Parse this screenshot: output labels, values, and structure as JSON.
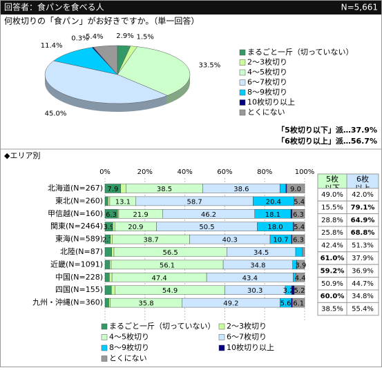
{
  "header": {
    "title": "回答者：食パンを食べる人",
    "n": "N=5,661"
  },
  "question": "何枚切りの「食パン」がお好きですか。（単一回答）",
  "summary": [
    "「5枚切り以下」派…37.9%",
    "「6枚切り以上」派…56.7%"
  ],
  "area_label": "◆エリア別",
  "table": {
    "header": [
      [
        "5枚",
        "以下"
      ],
      [
        "6枚",
        "以上"
      ]
    ],
    "header_colors": [
      "#ccffcc",
      "#cce6ff"
    ],
    "rows": [
      [
        "49.0%",
        "42.0%"
      ],
      [
        "15.5%",
        "79.1%"
      ],
      [
        "28.8%",
        "64.9%"
      ],
      [
        "25.8%",
        "68.8%"
      ],
      [
        "42.4%",
        "51.3%"
      ],
      [
        "61.0%",
        "37.9%"
      ],
      [
        "59.2%",
        "36.9%"
      ],
      [
        "50.9%",
        "44.7%"
      ],
      [
        "60.0%",
        "34.8%"
      ],
      [
        "38.5%",
        "55.4%"
      ]
    ],
    "bold": [
      [
        false,
        false
      ],
      [
        false,
        true
      ],
      [
        false,
        true
      ],
      [
        false,
        true
      ],
      [
        false,
        false
      ],
      [
        true,
        false
      ],
      [
        true,
        false
      ],
      [
        false,
        false
      ],
      [
        true,
        false
      ],
      [
        false,
        false
      ]
    ]
  },
  "chart_data": [
    {
      "type": "pie",
      "categories": [
        "まるごと一斤（切っていない）",
        "2～3枚切り",
        "4～5枚切り",
        "6～7枚切り",
        "8～9枚切り",
        "10枚切り以上",
        "とくにない"
      ],
      "values": [
        2.9,
        1.5,
        33.5,
        45.0,
        11.4,
        0.3,
        5.4
      ],
      "value_labels": [
        "2.9%",
        "1.5%",
        "33.5%",
        "45.0%",
        "11.4%",
        "0.3%",
        "5.4%"
      ],
      "colors": [
        "#339966",
        "#ccff99",
        "#ccffcc",
        "#cce6ff",
        "#00ccff",
        "#000080",
        "#999999"
      ],
      "legend": "right"
    },
    {
      "type": "stacked-bar",
      "orientation": "horizontal",
      "categories": [
        "北海道(N=267)",
        "東北(N=260)",
        "甲信越(N=160)",
        "関東(N=2464)",
        "東海(N=589)",
        "北陸(N=87)",
        "近畿(N=1091)",
        "中国(N=228)",
        "四国(N=155)",
        "九州・沖縄(N=360)"
      ],
      "xlim": [
        0,
        100
      ],
      "xticks": [
        {
          "value": 0,
          "label": "0%"
        },
        {
          "value": 20,
          "label": "20%"
        },
        {
          "value": 40,
          "label": "40%"
        },
        {
          "value": 60,
          "label": "60%"
        },
        {
          "value": 80,
          "label": "80%"
        },
        {
          "value": 100,
          "label": "100%"
        }
      ],
      "series": [
        {
          "name": "まるごと一斤（切っていない）",
          "color": "#339966",
          "values": [
            7.9,
            1.5,
            6.3,
            3.9,
            2.7,
            3.4,
            2.3,
            2.2,
            3.2,
            1.9
          ],
          "value_labels": [
            "7.9",
            null,
            "6.3",
            "3.9",
            "2.7",
            null,
            null,
            null,
            null,
            null
          ]
        },
        {
          "name": "2～3枚切り",
          "color": "#ccff99",
          "values": [
            2.6,
            0.9,
            0.6,
            1.0,
            1.0,
            1.1,
            0.8,
            1.3,
            1.9,
            0.8
          ],
          "value_labels": [
            null,
            null,
            null,
            null,
            null,
            null,
            null,
            null,
            null,
            null
          ]
        },
        {
          "name": "4～5枚切り",
          "color": "#ccffcc",
          "values": [
            38.5,
            13.1,
            21.9,
            20.9,
            38.7,
            56.5,
            56.1,
            47.4,
            54.9,
            35.8
          ],
          "value_labels": [
            "38.5",
            "13.1",
            "21.9",
            "20.9",
            "38.7",
            "56.5",
            "56.1",
            "47.4",
            "54.9",
            "35.8"
          ]
        },
        {
          "name": "6～7枚切り",
          "color": "#cce6ff",
          "values": [
            38.6,
            58.7,
            46.2,
            50.5,
            40.3,
            34.5,
            34.8,
            43.4,
            30.3,
            49.2
          ],
          "value_labels": [
            "38.6",
            "58.7",
            "46.2",
            "50.5",
            "40.3",
            "34.5",
            "34.8",
            "43.4",
            "30.3",
            "49.2"
          ]
        },
        {
          "name": "8～9枚切り",
          "color": "#00ccff",
          "values": [
            3.0,
            20.4,
            18.1,
            18.0,
            10.7,
            3.4,
            2.0,
            1.3,
            3.2,
            5.6
          ],
          "value_labels": [
            null,
            "20.4",
            "18.1",
            "18.0",
            "10.7",
            null,
            null,
            null,
            "3.2",
            "5.6"
          ]
        },
        {
          "name": "10枚切り以上",
          "color": "#000080",
          "values": [
            0.4,
            0.0,
            0.6,
            0.3,
            0.3,
            0.0,
            0.1,
            0.0,
            1.3,
            0.6
          ],
          "value_labels": [
            null,
            null,
            null,
            null,
            null,
            null,
            null,
            null,
            null,
            null
          ]
        },
        {
          "name": "とくにない",
          "color": "#999999",
          "values": [
            9.0,
            5.4,
            6.3,
            5.4,
            6.3,
            1.1,
            3.9,
            4.4,
            5.2,
            6.1
          ],
          "value_labels": [
            "9.0",
            "5.4",
            "6.3",
            "5.4",
            "6.3",
            null,
            "3.9",
            "4.4",
            "5.2",
            "6.1"
          ]
        }
      ],
      "legend": "bottom"
    }
  ]
}
